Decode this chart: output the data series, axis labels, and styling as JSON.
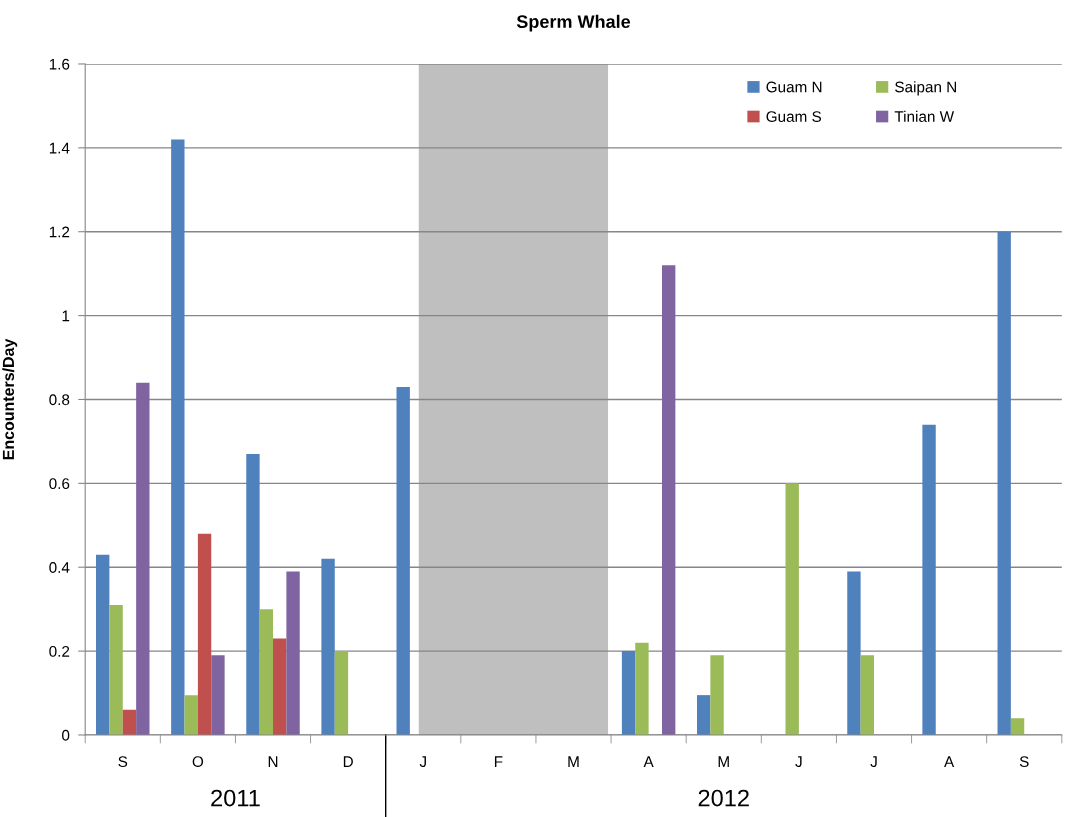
{
  "chart_data": {
    "type": "bar",
    "title": "Sperm Whale",
    "ylabel": "Encounters/Day",
    "categories": [
      "S",
      "O",
      "N",
      "D",
      "J",
      "F",
      "M",
      "A",
      "M",
      "J",
      "J",
      "A",
      "S"
    ],
    "series": [
      {
        "name": "Guam N",
        "color": "#4f81bd",
        "values": [
          0.43,
          1.42,
          0.67,
          0.42,
          0.83,
          null,
          null,
          0.2,
          0.095,
          null,
          0.39,
          0.74,
          1.2
        ]
      },
      {
        "name": "Saipan N",
        "color": "#9bbb59",
        "values": [
          0.31,
          0.095,
          0.3,
          0.2,
          null,
          null,
          null,
          0.22,
          0.19,
          0.6,
          0.19,
          null,
          0.04
        ]
      },
      {
        "name": "Guam S",
        "color": "#c0504d",
        "values": [
          0.06,
          0.48,
          0.23,
          null,
          null,
          null,
          null,
          null,
          null,
          null,
          null,
          null,
          null
        ]
      },
      {
        "name": "Tinian W",
        "color": "#8064a2",
        "values": [
          0.84,
          0.19,
          0.39,
          null,
          null,
          null,
          null,
          1.12,
          null,
          null,
          null,
          null,
          null
        ]
      }
    ],
    "ylim": [
      0,
      1.6
    ],
    "yticks": [
      0,
      0.2,
      0.4,
      0.6,
      0.8,
      1,
      1.2,
      1.4,
      1.6
    ],
    "annotations": [
      "2011",
      "2012"
    ],
    "legend": "top right",
    "grid": "y"
  }
}
